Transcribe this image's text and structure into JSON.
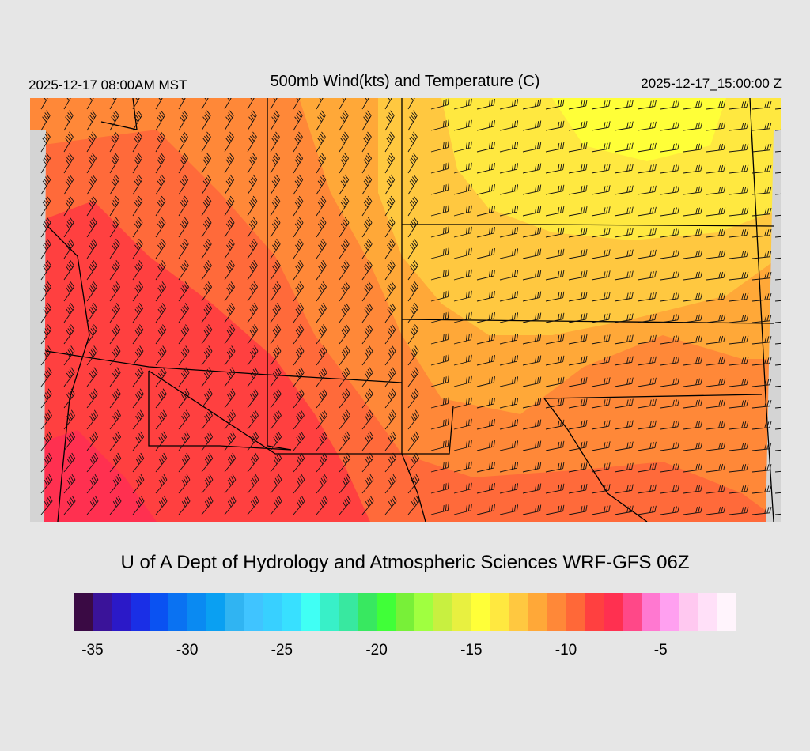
{
  "header": {
    "valid_local": "2025-12-17 08:00AM MST",
    "title": "500mb Wind(kts) and Temperature (C)",
    "valid_utc": "2025-12-17_15:00:00 Z"
  },
  "footer": {
    "credit": "U of A Dept of Hydrology and Atmospheric Sciences WRF-GFS 06Z"
  },
  "colorbar": {
    "colors": [
      "#3a0a44",
      "#3a1399",
      "#2b19c8",
      "#1a2fe6",
      "#0a52f2",
      "#0a72f2",
      "#0a8af2",
      "#0aa0f2",
      "#30b4f2",
      "#40c4ff",
      "#38d0ff",
      "#38e0ff",
      "#40fff4",
      "#38f0c8",
      "#38e8a0",
      "#38e860",
      "#40ff38",
      "#78f038",
      "#a0ff40",
      "#c8f040",
      "#e8f040",
      "#ffff38",
      "#ffe840",
      "#ffc840",
      "#ffa838",
      "#ff8838",
      "#ff6838",
      "#ff4040",
      "#ff3050",
      "#ff4888",
      "#ff78d0",
      "#ffa0f0",
      "#ffc8f0",
      "#ffe0f8",
      "#fff4fc"
    ],
    "tick_values": [
      -35,
      -30,
      -25,
      -20,
      -15,
      -10,
      -5
    ],
    "tick_labels": [
      "-35",
      "-30",
      "-25",
      "-20",
      "-15",
      "-10",
      "-5"
    ],
    "min": -36,
    "max": -1
  },
  "map": {
    "field": "500mb temperature (C) with wind barbs (kts)",
    "regions": [
      {
        "temp": -7,
        "color": "#ff4040"
      },
      {
        "temp": -9,
        "color": "#ff6a3a"
      },
      {
        "temp": -11,
        "color": "#ff8838"
      },
      {
        "temp": -12,
        "color": "#ffa838"
      },
      {
        "temp": -13,
        "color": "#ffc840"
      },
      {
        "temp": -15,
        "color": "#ffe840"
      },
      {
        "temp": -16,
        "color": "#ffff38"
      },
      {
        "temp": -6,
        "color": "#ff3050"
      }
    ]
  }
}
